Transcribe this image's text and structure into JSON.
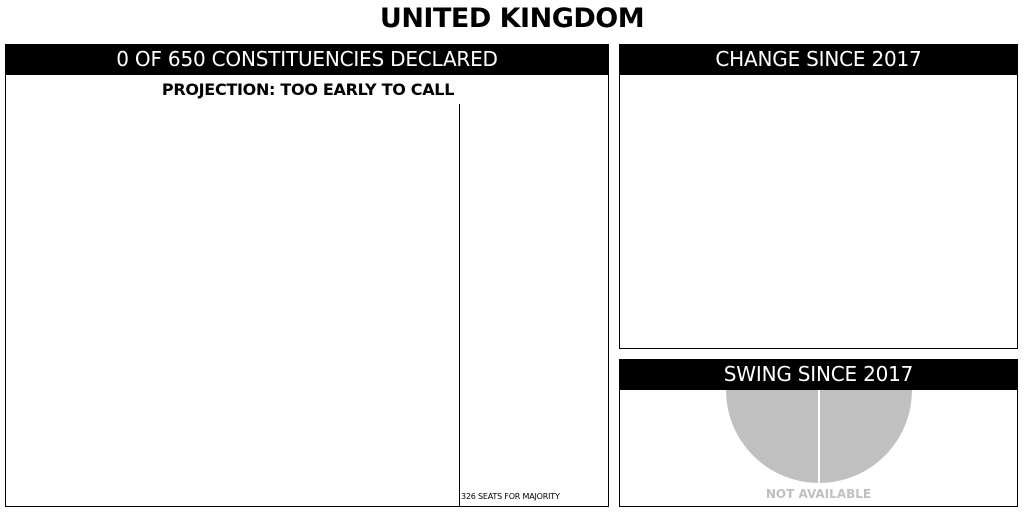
{
  "page": {
    "title": "UNITED KINGDOM"
  },
  "seats_panel": {
    "header": "0 OF 650 CONSTITUENCIES DECLARED",
    "projection": "PROJECTION: TOO EARLY TO CALL",
    "majority_label": "326 SEATS FOR MAJORITY",
    "majority_seats": 326,
    "total_seats": 650,
    "declared": 0
  },
  "change_panel": {
    "header": "CHANGE SINCE 2017"
  },
  "swing_panel": {
    "header": "SWING SINCE 2017",
    "status": "NOT AVAILABLE",
    "gauge_color": "#c0c0c0",
    "status_color": "#c0c0c0"
  },
  "colors": {
    "header_bg": "#000000",
    "header_text": "#ffffff",
    "border": "#000000"
  }
}
